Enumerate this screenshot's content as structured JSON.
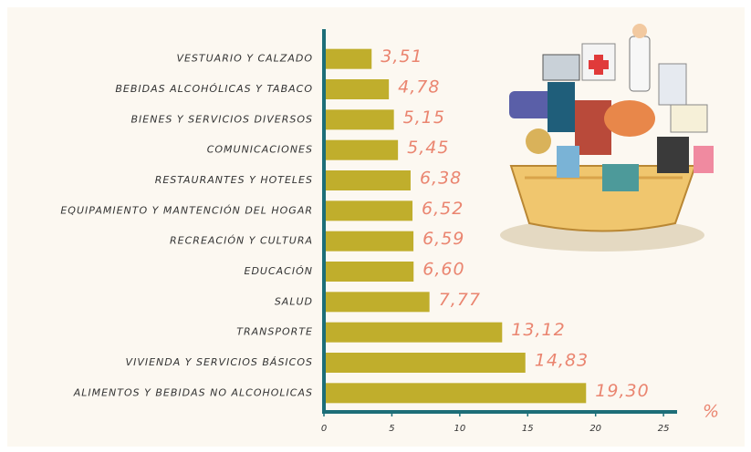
{
  "chart_data": {
    "type": "bar",
    "orientation": "horizontal",
    "categories": [
      "VESTUARIO Y CALZADO",
      "BEBIDAS ALCOHÓLICAS Y TABACO",
      "BIENES Y SERVICIOS DIVERSOS",
      "COMUNICACIONES",
      "RESTAURANTES Y HOTELES",
      "EQUIPAMIENTO Y MANTENCIÓN DEL HOGAR",
      "RECREACIÓN Y CULTURA",
      "EDUCACIÓN",
      "SALUD",
      "TRANSPORTE",
      "VIVIENDA Y SERVICIOS BÁSICOS",
      "ALIMENTOS Y BEBIDAS NO ALCOHOLICAS"
    ],
    "values": [
      3.51,
      4.78,
      5.15,
      5.45,
      6.38,
      6.52,
      6.59,
      6.6,
      7.77,
      13.12,
      14.83,
      19.3
    ],
    "value_labels": [
      "3,51",
      "4,78",
      "5,15",
      "5,45",
      "6,38",
      "6,52",
      "6,59",
      "6,60",
      "7,77",
      "13,12",
      "14,83",
      "19,30"
    ],
    "color": "#c0ae2c",
    "label_color": "#ea8570",
    "axis_color": "#1d6e78",
    "x_label": "%",
    "xlim": [
      0,
      26
    ],
    "xticks": [
      0,
      5,
      10,
      15,
      20,
      25
    ]
  }
}
